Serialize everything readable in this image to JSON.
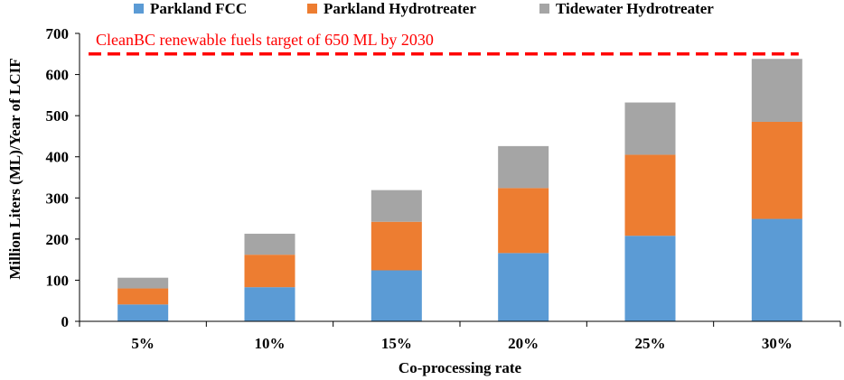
{
  "chart_data": {
    "type": "bar",
    "stacked": true,
    "categories": [
      "5%",
      "10%",
      "15%",
      "20%",
      "25%",
      "30%"
    ],
    "series": [
      {
        "name": "Parkland FCC",
        "color": "#5b9bd5",
        "values": [
          41,
          83,
          124,
          166,
          208,
          249
        ]
      },
      {
        "name": "Parkland Hydrotreater",
        "color": "#ed7d31",
        "values": [
          39,
          79,
          118,
          158,
          197,
          236
        ]
      },
      {
        "name": "Tidewater Hydrotreater",
        "color": "#a5a5a5",
        "values": [
          26,
          51,
          77,
          102,
          127,
          153
        ]
      }
    ],
    "xlabel": "Co-processing rate",
    "ylabel": "Million Liters (ML)/Year of LCIF",
    "ylim": [
      0,
      700
    ],
    "yticks": [
      0,
      100,
      200,
      300,
      400,
      500,
      600,
      700
    ],
    "grid": false,
    "legend_position": "top",
    "reference_line": {
      "value": 650,
      "label": "CleanBC renewable fuels target of 650 ML by 2030",
      "color": "#ff0000",
      "style": "dashed"
    }
  }
}
